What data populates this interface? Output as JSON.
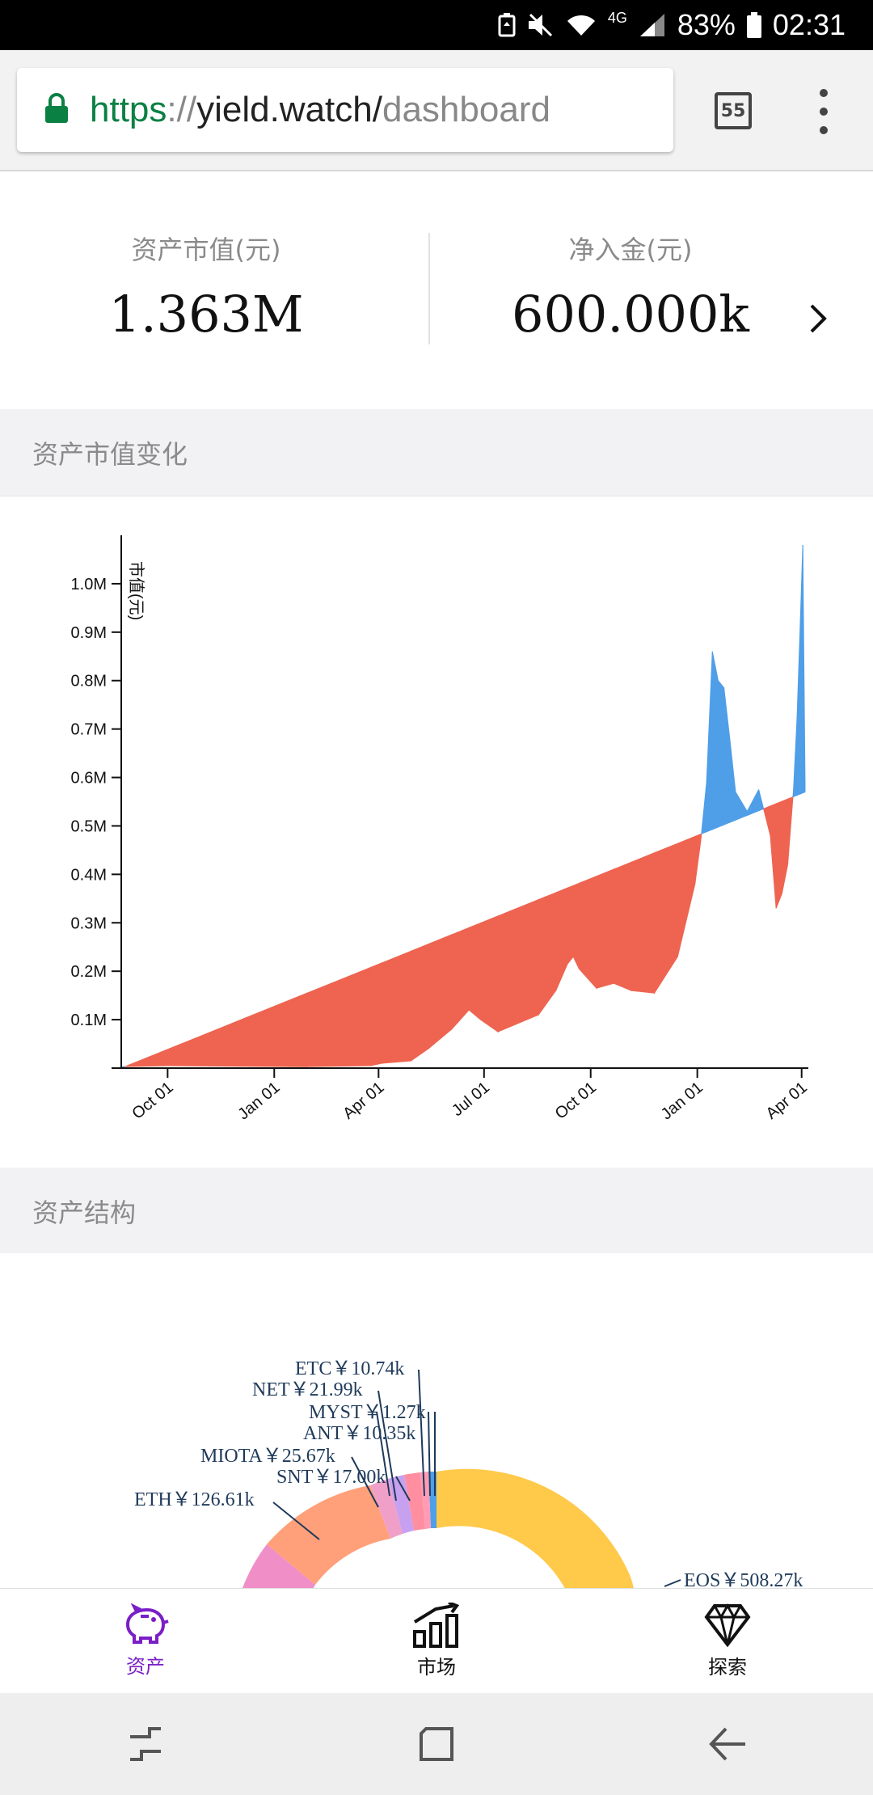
{
  "status_bar": {
    "battery_percent": "83%",
    "time": "02:31",
    "network": "4G"
  },
  "browser": {
    "url_scheme": "https",
    "url_sep": "://",
    "url_host": "yield.watch/",
    "url_path": "dashboard",
    "tab_count": "55"
  },
  "stats": {
    "market_value_label": "资产市值(元)",
    "market_value": "1.363M",
    "net_inflow_label": "净入金(元)",
    "net_inflow": "600.000k"
  },
  "sections": {
    "value_change_title": "资产市值变化",
    "structure_title": "资产结构"
  },
  "colors": {
    "gain": "#4f9ee8",
    "loss": "#ee6450",
    "accent": "#7a1fc7"
  },
  "chart_data": {
    "type": "area",
    "ylabel": "市值(元)",
    "y_ticks": [
      "0.1M",
      "0.2M",
      "0.3M",
      "0.4M",
      "0.5M",
      "0.6M",
      "0.7M",
      "0.8M",
      "0.9M",
      "1.0M"
    ],
    "ylim": [
      0,
      1080000
    ],
    "x_ticks": [
      "Oct 01",
      "Jan 01",
      "Apr 01",
      "Jul 01",
      "Oct 01",
      "Jan 01",
      "Apr 01"
    ],
    "x_tick_days": [
      0,
      92,
      182,
      273,
      365,
      457,
      547
    ],
    "x_range_days": [
      -40,
      550
    ],
    "series": [
      {
        "x": [
          -40,
          0,
          60,
          120,
          175,
          185,
          210,
          225,
          245,
          260,
          270,
          285,
          300,
          320,
          335,
          345,
          350,
          355,
          370,
          385,
          400,
          420,
          440,
          455,
          460,
          465,
          470,
          475,
          480,
          485,
          490,
          500,
          510,
          520,
          525,
          530,
          535,
          540,
          543,
          546,
          548,
          550
        ],
        "y": [
          3000,
          5000,
          4000,
          3000,
          5000,
          10000,
          15000,
          40000,
          80000,
          120000,
          100000,
          75000,
          90000,
          110000,
          160000,
          215000,
          230000,
          205000,
          165000,
          175000,
          160000,
          155000,
          230000,
          380000,
          470000,
          590000,
          860000,
          800000,
          785000,
          680000,
          570000,
          530000,
          575000,
          480000,
          330000,
          360000,
          420000,
          575000,
          720000,
          930000,
          1080000,
          580000
        ]
      },
      {
        "x": [
          -40,
          550
        ],
        "y": [
          0,
          570000
        ]
      }
    ]
  },
  "donut_labels": [
    {
      "text": "ETC￥10.74k"
    },
    {
      "text": "NET￥21.99k"
    },
    {
      "text": "MYST￥1.27k"
    },
    {
      "text": "ANT￥10.35k"
    },
    {
      "text": "MIOTA￥25.67k"
    },
    {
      "text": "SNT￥17.00k"
    },
    {
      "text": "ETH￥126.61k"
    },
    {
      "text": "EOS￥508.27k"
    }
  ],
  "nav": {
    "assets": "资产",
    "market": "市场",
    "explore": "探索"
  }
}
